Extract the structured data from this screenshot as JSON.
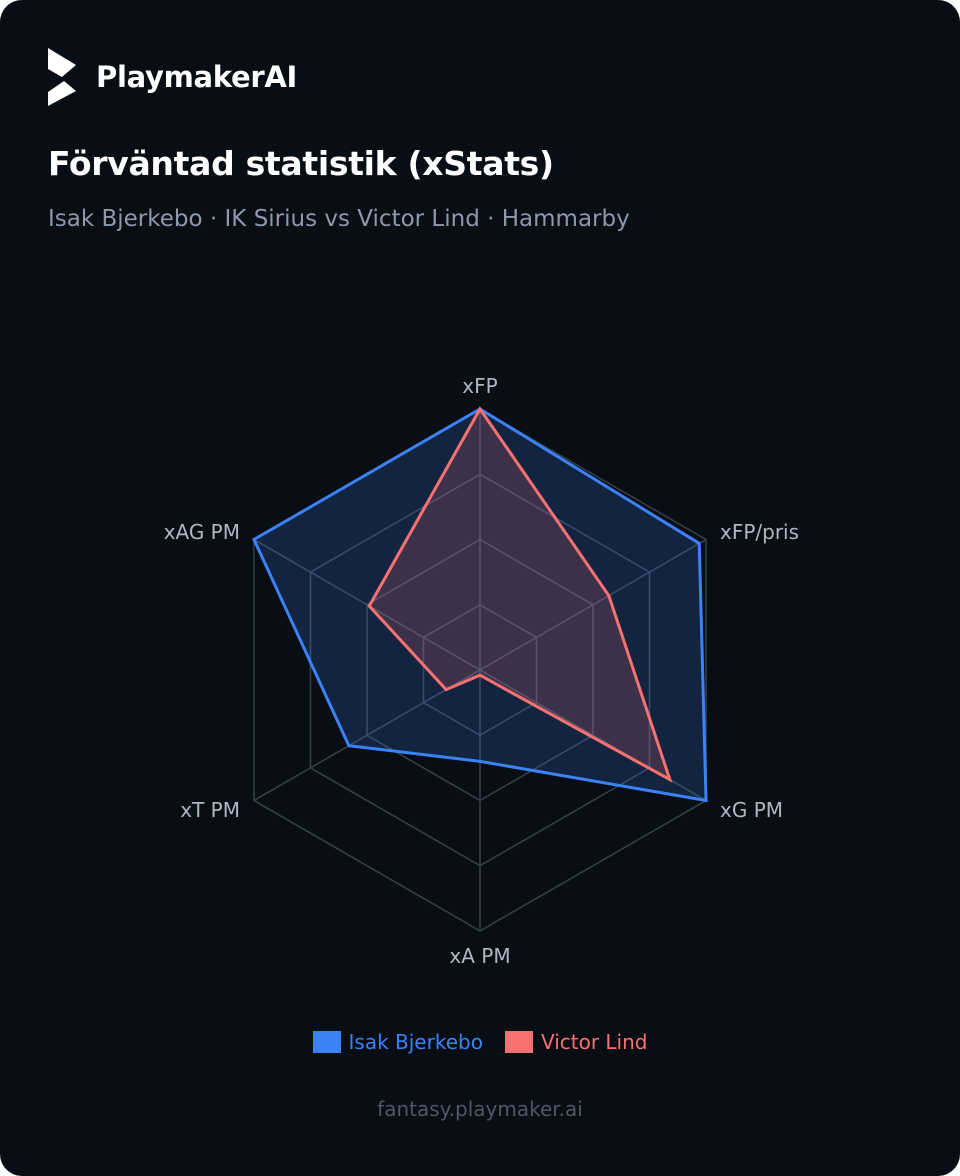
{
  "brand": {
    "name": "PlaymakerAI",
    "logo_icon": "playmaker-logo-icon"
  },
  "header": {
    "title": "Förväntad statistik (xStats)",
    "subtitle": "Isak Bjerkebo · IK Sirius vs Victor Lind · Hammarby"
  },
  "chart_data": {
    "type": "radar",
    "axes": [
      "xFP",
      "xFP/pris",
      "xG PM",
      "xA PM",
      "xT PM",
      "xAG PM"
    ],
    "range": [
      0,
      1
    ],
    "grid_levels": 4,
    "grid": true,
    "legend_placement": "bottom-center",
    "series": [
      {
        "name": "Isak Bjerkebo",
        "color": "#3b82f6",
        "values": [
          1.0,
          0.97,
          1.0,
          0.35,
          0.58,
          1.0
        ]
      },
      {
        "name": "Victor Lind",
        "color": "#f87171",
        "values": [
          1.0,
          0.57,
          0.84,
          0.02,
          0.15,
          0.49
        ]
      }
    ]
  },
  "footer": {
    "url": "fantasy.playmaker.ai"
  },
  "colors": {
    "background": "#090d14",
    "grid": "#353c4a",
    "series_a": "#3b82f6",
    "series_b": "#f87171"
  }
}
